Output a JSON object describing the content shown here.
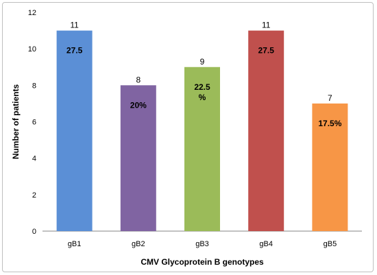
{
  "chart_data": {
    "type": "bar",
    "categories": [
      "gB1",
      "gB2",
      "gB3",
      "gB4",
      "gB5"
    ],
    "values": [
      11,
      8,
      9,
      11,
      7
    ],
    "percent_labels": [
      [
        "27.5"
      ],
      [
        "20%"
      ],
      [
        "22.5",
        "%"
      ],
      [
        "27.5"
      ],
      [
        "17.5%"
      ]
    ],
    "colors": [
      "#5b8fd6",
      "#8064a2",
      "#9bbb59",
      "#c0504d",
      "#f79646"
    ],
    "xlabel": "CMV Glycoprotein B genotypes",
    "ylabel": "Number of patients",
    "ylim": [
      0,
      12
    ],
    "yticks": [
      0,
      2,
      4,
      6,
      8,
      10,
      12
    ],
    "grid": false,
    "legend": "none"
  }
}
